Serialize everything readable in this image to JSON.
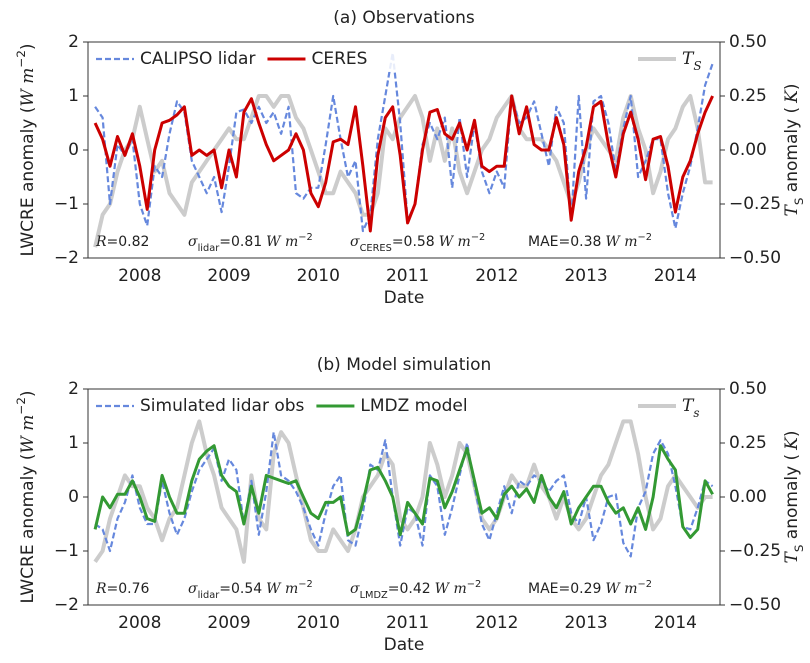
{
  "chart_data": [
    {
      "type": "line",
      "title": "(a) Observations",
      "xlabel": "Date",
      "ylabel": {
        "text": "LWCRE anomaly (",
        "math": "W m",
        "sup": "−2",
        "text2": ")"
      },
      "y2label": {
        "math": "T",
        "sub": "S",
        "text": " anomaly (",
        "math2": "K",
        "text2": ")"
      },
      "xlim": [
        2007.92,
        2015.0
      ],
      "xticks": [
        {
          "value": 2008.5,
          "label": "2008"
        },
        {
          "value": 2009.5,
          "label": "2009"
        },
        {
          "value": 2010.5,
          "label": "2010"
        },
        {
          "value": 2011.5,
          "label": "2011"
        },
        {
          "value": 2012.5,
          "label": "2012"
        },
        {
          "value": 2013.5,
          "label": "2013"
        },
        {
          "value": 2014.5,
          "label": "2014"
        }
      ],
      "ylim": [
        -2,
        2
      ],
      "yticks": [
        2,
        1,
        0,
        {
          "value": -1,
          "label": "−1"
        },
        {
          "value": -2,
          "label": "−2"
        }
      ],
      "y2lim": [
        -0.5,
        0.5
      ],
      "y2ticks": [
        {
          "value": 0.5,
          "label": "0.50"
        },
        {
          "value": 0.25,
          "label": "0.25"
        },
        {
          "value": 0,
          "label": "0.00"
        },
        {
          "value": -0.25,
          "label": "−0.25"
        },
        {
          "value": -0.5,
          "label": "−0.50"
        }
      ],
      "legend": "upper left",
      "legend_y2": "upper right",
      "annotations": [
        {
          "math": "R",
          "text": "=0.82"
        },
        {
          "math": "σ",
          "sub": "lidar",
          "text": "=0.81",
          "math2": "W m",
          "sup": "−2"
        },
        {
          "math": "σ",
          "sub": "CERES",
          "text": "=0.58",
          "math2": "W m",
          "sup": "−2"
        },
        {
          "text": "MAE=0.38",
          "math2": "W m",
          "sup": "−2"
        }
      ],
      "x": [
        2008,
        2008.083,
        2008.167,
        2008.25,
        2008.333,
        2008.417,
        2008.5,
        2008.583,
        2008.667,
        2008.75,
        2008.833,
        2008.917,
        2009,
        2009.083,
        2009.167,
        2009.25,
        2009.333,
        2009.417,
        2009.5,
        2009.583,
        2009.667,
        2009.75,
        2009.833,
        2009.917,
        2010,
        2010.083,
        2010.167,
        2010.25,
        2010.333,
        2010.417,
        2010.5,
        2010.583,
        2010.667,
        2010.75,
        2010.833,
        2010.917,
        2011,
        2011.083,
        2011.167,
        2011.25,
        2011.333,
        2011.417,
        2011.5,
        2011.583,
        2011.667,
        2011.75,
        2011.833,
        2011.917,
        2012,
        2012.083,
        2012.167,
        2012.25,
        2012.333,
        2012.417,
        2012.5,
        2012.583,
        2012.667,
        2012.75,
        2012.833,
        2012.917,
        2013,
        2013.083,
        2013.167,
        2013.25,
        2013.333,
        2013.417,
        2013.5,
        2013.583,
        2013.667,
        2013.75,
        2013.833,
        2013.917,
        2014,
        2014.083,
        2014.167,
        2014.25,
        2014.333,
        2014.417,
        2014.5,
        2014.583,
        2014.667,
        2014.75,
        2014.833,
        2014.917
      ],
      "series": [
        {
          "name": "T",
          "name_sub": "S",
          "color": "#cccccc",
          "axis": "y2",
          "values": [
            -0.45,
            -0.3,
            -0.25,
            -0.1,
            0,
            0.05,
            0.2,
            0.05,
            -0.1,
            -0.05,
            -0.2,
            -0.25,
            -0.3,
            -0.15,
            -0.1,
            -0.05,
            0,
            0.05,
            0.1,
            0.05,
            0.05,
            0.15,
            0.25,
            0.25,
            0.2,
            0.25,
            0.25,
            0.15,
            0.1,
            0,
            -0.1,
            -0.2,
            -0.2,
            -0.1,
            -0.15,
            -0.2,
            -0.3,
            -0.3,
            -0.2,
            0.1,
            0.05,
            0.15,
            0.2,
            0.25,
            0.15,
            -0.05,
            0.1,
            -0.05,
            0.1,
            -0.1,
            -0.2,
            -0.1,
            0,
            0.05,
            0.15,
            0.2,
            0.25,
            0.1,
            0.05,
            0.05,
            0.05,
            0,
            -0.05,
            -0.15,
            -0.25,
            -0.15,
            0,
            0.1,
            0.05,
            0,
            -0.05,
            0.15,
            0.25,
            0.1,
            0,
            -0.2,
            -0.1,
            0.05,
            0.1,
            0.2,
            0.25,
            0.1,
            -0.15,
            -0.15
          ]
        },
        {
          "name": "CALIPSO lidar",
          "color": "#6688dd",
          "dashed": true,
          "values": [
            0.8,
            0.6,
            -1.0,
            0.1,
            -0.1,
            0.2,
            -1.0,
            -1.4,
            -0.3,
            -0.5,
            0.3,
            0.9,
            0.7,
            -0.2,
            -0.5,
            -0.8,
            -0.5,
            -1.15,
            -0.3,
            0.7,
            0.75,
            0.5,
            0.8,
            0.5,
            0.7,
            0.3,
            0.8,
            -0.8,
            -0.9,
            -0.7,
            -0.7,
            0.1,
            1.0,
            0.2,
            -0.5,
            -0.2,
            -1.5,
            -1.2,
            0.2,
            1.0,
            1.8,
            0.5,
            -1.3,
            -1.0,
            0.1,
            0.5,
            0.2,
            0.6,
            -0.7,
            0.6,
            -0.5,
            0.5,
            -0.4,
            -0.8,
            -0.4,
            -0.7,
            1.0,
            0.5,
            0.6,
            0.9,
            0.3,
            -0.3,
            0.8,
            0.5,
            -1.3,
            1.0,
            -0.9,
            0.9,
            1.0,
            0.5,
            -0.4,
            0.4,
            1.0,
            -0.5,
            -0.2,
            0.2,
            0.2,
            -0.8,
            -1.45,
            -0.8,
            -0.3,
            0.4,
            1.2,
            1.6
          ]
        },
        {
          "name": "CERES",
          "color": "#cc0000",
          "values": [
            0.5,
            0.2,
            -0.3,
            0.25,
            -0.1,
            0.3,
            -0.3,
            -1.1,
            0,
            0.5,
            0.55,
            0.65,
            0.8,
            -0.1,
            0,
            -0.1,
            0,
            -0.7,
            0,
            -0.5,
            0.7,
            0.95,
            0.5,
            0.1,
            -0.2,
            -0.1,
            0,
            0.3,
            0,
            -0.8,
            -1.05,
            -0.6,
            0.15,
            0.2,
            0.1,
            0.8,
            -0.3,
            -1.5,
            -0.1,
            0.6,
            0.8,
            -0.1,
            -1.35,
            -1.0,
            0,
            0.7,
            0.75,
            0.3,
            0.2,
            0.5,
            0,
            0.55,
            -0.3,
            -0.4,
            -0.3,
            -0.3,
            1.0,
            0.3,
            0.8,
            0.1,
            0,
            0,
            0.6,
            0.1,
            -1.3,
            -0.4,
            0.05,
            0.8,
            0.9,
            0.1,
            -0.5,
            0.3,
            0.7,
            0.2,
            -0.55,
            0.2,
            0.25,
            -0.3,
            -1.15,
            -0.5,
            -0.2,
            0.3,
            0.7,
            1.0
          ]
        }
      ]
    },
    {
      "type": "line",
      "title": "(b) Model simulation",
      "xlabel": "Date",
      "ylabel": {
        "text": "LWCRE anomaly (",
        "math": "W m",
        "sup": "−2",
        "text2": ")"
      },
      "y2label": {
        "math": "T",
        "sub": "S",
        "text": " anomaly (",
        "math2": "K",
        "text2": ")"
      },
      "xlim": [
        2007.92,
        2015.0
      ],
      "xticks": [
        {
          "value": 2008.5,
          "label": "2008"
        },
        {
          "value": 2009.5,
          "label": "2009"
        },
        {
          "value": 2010.5,
          "label": "2010"
        },
        {
          "value": 2011.5,
          "label": "2011"
        },
        {
          "value": 2012.5,
          "label": "2012"
        },
        {
          "value": 2013.5,
          "label": "2013"
        },
        {
          "value": 2014.5,
          "label": "2014"
        }
      ],
      "ylim": [
        -2,
        2
      ],
      "yticks": [
        2,
        1,
        0,
        {
          "value": -1,
          "label": "−1"
        },
        {
          "value": -2,
          "label": "−2"
        }
      ],
      "y2lim": [
        -0.5,
        0.5
      ],
      "y2ticks": [
        {
          "value": 0.5,
          "label": "0.50"
        },
        {
          "value": 0.25,
          "label": "0.25"
        },
        {
          "value": 0,
          "label": "0.00"
        },
        {
          "value": -0.25,
          "label": "−0.25"
        },
        {
          "value": -0.5,
          "label": "−0.50"
        }
      ],
      "legend": "upper left",
      "legend_y2": "upper right",
      "annotations": [
        {
          "math": "R",
          "text": "=0.76"
        },
        {
          "math": "σ",
          "sub": "lidar",
          "text": "=0.54",
          "math2": "W m",
          "sup": "−2"
        },
        {
          "math": "σ",
          "sub": "LMDZ",
          "text": "=0.42",
          "math2": "W m",
          "sup": "−2"
        },
        {
          "text": "MAE=0.29",
          "math2": "W m",
          "sup": "−2"
        }
      ],
      "x": [
        2008,
        2008.083,
        2008.167,
        2008.25,
        2008.333,
        2008.417,
        2008.5,
        2008.583,
        2008.667,
        2008.75,
        2008.833,
        2008.917,
        2009,
        2009.083,
        2009.167,
        2009.25,
        2009.333,
        2009.417,
        2009.5,
        2009.583,
        2009.667,
        2009.75,
        2009.833,
        2009.917,
        2010,
        2010.083,
        2010.167,
        2010.25,
        2010.333,
        2010.417,
        2010.5,
        2010.583,
        2010.667,
        2010.75,
        2010.833,
        2010.917,
        2011,
        2011.083,
        2011.167,
        2011.25,
        2011.333,
        2011.417,
        2011.5,
        2011.583,
        2011.667,
        2011.75,
        2011.833,
        2011.917,
        2012,
        2012.083,
        2012.167,
        2012.25,
        2012.333,
        2012.417,
        2012.5,
        2012.583,
        2012.667,
        2012.75,
        2012.833,
        2012.917,
        2013,
        2013.083,
        2013.167,
        2013.25,
        2013.333,
        2013.417,
        2013.5,
        2013.583,
        2013.667,
        2013.75,
        2013.833,
        2013.917,
        2014,
        2014.083,
        2014.167,
        2014.25,
        2014.333,
        2014.417,
        2014.5,
        2014.583,
        2014.667,
        2014.75,
        2014.833,
        2014.917
      ],
      "series": [
        {
          "name": "T",
          "name_sub": "s",
          "color": "#cccccc",
          "axis": "y2",
          "values": [
            -0.3,
            -0.25,
            -0.1,
            0,
            0.1,
            0.05,
            0.05,
            -0.05,
            -0.1,
            -0.2,
            -0.1,
            -0.05,
            0.1,
            0.25,
            0.35,
            0.2,
            0.1,
            -0.05,
            -0.1,
            -0.15,
            -0.3,
            0.1,
            -0.1,
            -0.15,
            0.2,
            0.3,
            0.25,
            0.1,
            -0.05,
            -0.2,
            -0.25,
            -0.25,
            -0.15,
            -0.2,
            -0.25,
            -0.15,
            0,
            0.05,
            0.1,
            0.2,
            0.15,
            -0.1,
            -0.15,
            -0.1,
            0,
            0.25,
            0.15,
            0,
            0.1,
            0.25,
            0.2,
            0.05,
            -0.1,
            -0.15,
            -0.1,
            0,
            0.1,
            0.05,
            0.05,
            0.15,
            0.05,
            0,
            -0.1,
            0,
            -0.1,
            -0.15,
            -0.1,
            0,
            0.1,
            0.15,
            0.25,
            0.35,
            0.35,
            0.2,
            0,
            -0.15,
            -0.1,
            0.05,
            0.1,
            0.05,
            0,
            -0.05,
            0,
            0
          ]
        },
        {
          "name": "Simulated lidar obs",
          "color": "#6688dd",
          "dashed": true,
          "values": [
            -0.5,
            -0.6,
            -1.0,
            -0.4,
            -0.1,
            0.4,
            -0.2,
            -0.5,
            -0.5,
            0.3,
            -0.3,
            -0.7,
            -0.4,
            0.1,
            0.5,
            0.7,
            0.9,
            0.3,
            0.7,
            0.5,
            -0.5,
            0.3,
            -0.7,
            0.1,
            1.2,
            0.4,
            0.3,
            0.1,
            -0.2,
            -0.6,
            -0.9,
            -0.3,
            0.2,
            0.4,
            -0.8,
            -0.9,
            -0.3,
            0.6,
            0.5,
            1.05,
            0,
            -0.9,
            -0.2,
            -0.3,
            -0.9,
            0.4,
            0.2,
            -0.7,
            -0.2,
            0.4,
            1.0,
            0.2,
            -0.5,
            -0.8,
            -0.3,
            0.2,
            -0.3,
            0.3,
            0.2,
            0.4,
            0.3,
            0.1,
            0.3,
            0.4,
            -0.3,
            -0.5,
            0,
            -0.8,
            -0.5,
            0,
            0.05,
            -0.85,
            -1.1,
            -0.2,
            0.1,
            0.8,
            1.05,
            0.8,
            0.2,
            -0.55,
            -0.6,
            -0.2,
            0.3,
            0.2
          ]
        },
        {
          "name": "LMDZ model",
          "color": "#339933",
          "values": [
            -0.6,
            0,
            -0.2,
            0.05,
            0.05,
            0.3,
            0,
            -0.4,
            -0.45,
            0.4,
            0,
            -0.3,
            -0.3,
            0.3,
            0.7,
            0.85,
            0.95,
            0.4,
            0.2,
            0.1,
            -0.5,
            0.2,
            -0.3,
            0.4,
            0.35,
            0.3,
            0.25,
            0.3,
            0,
            -0.3,
            -0.4,
            -0.1,
            -0.1,
            0,
            -0.7,
            -0.6,
            -0.1,
            0.5,
            0.55,
            0.3,
            0,
            -0.7,
            -0.1,
            -0.3,
            -0.5,
            0.35,
            0.3,
            -0.2,
            0.1,
            0.5,
            0.9,
            0.3,
            -0.3,
            -0.2,
            -0.4,
            0.05,
            0.2,
            0,
            0.15,
            -0.1,
            0.4,
            0,
            -0.2,
            0.1,
            -0.5,
            -0.2,
            0,
            0.2,
            0.2,
            -0.1,
            -0.3,
            -0.2,
            -0.5,
            -0.2,
            -0.6,
            0,
            0.95,
            0.7,
            0.5,
            -0.55,
            -0.75,
            -0.6,
            0.3,
            0.05
          ]
        }
      ]
    }
  ]
}
